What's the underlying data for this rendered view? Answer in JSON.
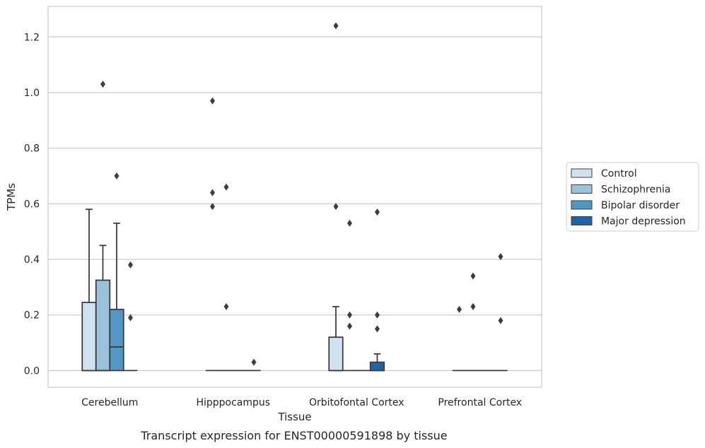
{
  "caption": "Transcript expression for ENST00000591898 by tissue",
  "chart_data": {
    "type": "box",
    "xlabel": "Tissue",
    "ylabel": "TPMs",
    "ylim": [
      -0.06,
      1.31
    ],
    "yticks": [
      "0.0",
      "0.2",
      "0.4",
      "0.6",
      "0.8",
      "1.0",
      "1.2"
    ],
    "grid": "horizontal",
    "legend_position": "right",
    "categories": [
      "Cerebellum",
      "Hipppocampus",
      "Orbitofontal Cortex",
      "Prefrontal Cortex"
    ],
    "series": [
      {
        "name": "Control",
        "color": "#d0e1f0",
        "boxes": [
          {
            "whisker_low": 0,
            "q1": 0,
            "median": 0,
            "q3": 0.245,
            "whisker_high": 0.58,
            "outliers": []
          },
          {
            "whisker_low": 0,
            "q1": 0,
            "median": 0,
            "q3": 0,
            "whisker_high": 0,
            "outliers": [
              0.97,
              0.64,
              0.59
            ]
          },
          {
            "whisker_low": 0,
            "q1": 0,
            "median": 0,
            "q3": 0.12,
            "whisker_high": 0.23,
            "outliers": [
              1.24,
              0.59
            ]
          },
          {
            "whisker_low": 0,
            "q1": 0,
            "median": 0,
            "q3": 0,
            "whisker_high": 0,
            "outliers": [
              0.22
            ]
          }
        ]
      },
      {
        "name": "Schizophrenia",
        "color": "#9ac2dc",
        "boxes": [
          {
            "whisker_low": 0,
            "q1": 0,
            "median": 0,
            "q3": 0.325,
            "whisker_high": 0.45,
            "outliers": [
              1.03
            ]
          },
          {
            "whisker_low": 0,
            "q1": 0,
            "median": 0,
            "q3": 0,
            "whisker_high": 0,
            "outliers": [
              0.66,
              0.23
            ]
          },
          {
            "whisker_low": 0,
            "q1": 0,
            "median": 0,
            "q3": 0,
            "whisker_high": 0,
            "outliers": [
              0.53,
              0.2,
              0.16
            ]
          },
          {
            "whisker_low": 0,
            "q1": 0,
            "median": 0,
            "q3": 0,
            "whisker_high": 0,
            "outliers": [
              0.34,
              0.23
            ]
          }
        ]
      },
      {
        "name": "Bipolar disorder",
        "color": "#5496c4",
        "boxes": [
          {
            "whisker_low": 0,
            "q1": 0,
            "median": 0.085,
            "q3": 0.22,
            "whisker_high": 0.53,
            "outliers": [
              0.7
            ]
          },
          {
            "whisker_low": 0,
            "q1": 0,
            "median": 0,
            "q3": 0,
            "whisker_high": 0,
            "outliers": []
          },
          {
            "whisker_low": 0,
            "q1": 0,
            "median": 0,
            "q3": 0,
            "whisker_high": 0,
            "outliers": []
          },
          {
            "whisker_low": 0,
            "q1": 0,
            "median": 0,
            "q3": 0,
            "whisker_high": 0,
            "outliers": []
          }
        ]
      },
      {
        "name": "Major depression",
        "color": "#2064a8",
        "boxes": [
          {
            "whisker_low": 0,
            "q1": 0,
            "median": 0,
            "q3": 0,
            "whisker_high": 0,
            "outliers": [
              0.38,
              0.19
            ]
          },
          {
            "whisker_low": 0,
            "q1": 0,
            "median": 0,
            "q3": 0,
            "whisker_high": 0,
            "outliers": [
              0.03
            ]
          },
          {
            "whisker_low": 0,
            "q1": 0,
            "median": 0,
            "q3": 0.03,
            "whisker_high": 0.06,
            "outliers": [
              0.57,
              0.2,
              0.15
            ]
          },
          {
            "whisker_low": 0,
            "q1": 0,
            "median": 0,
            "q3": 0,
            "whisker_high": 0,
            "outliers": [
              0.41,
              0.18
            ]
          }
        ]
      }
    ]
  }
}
